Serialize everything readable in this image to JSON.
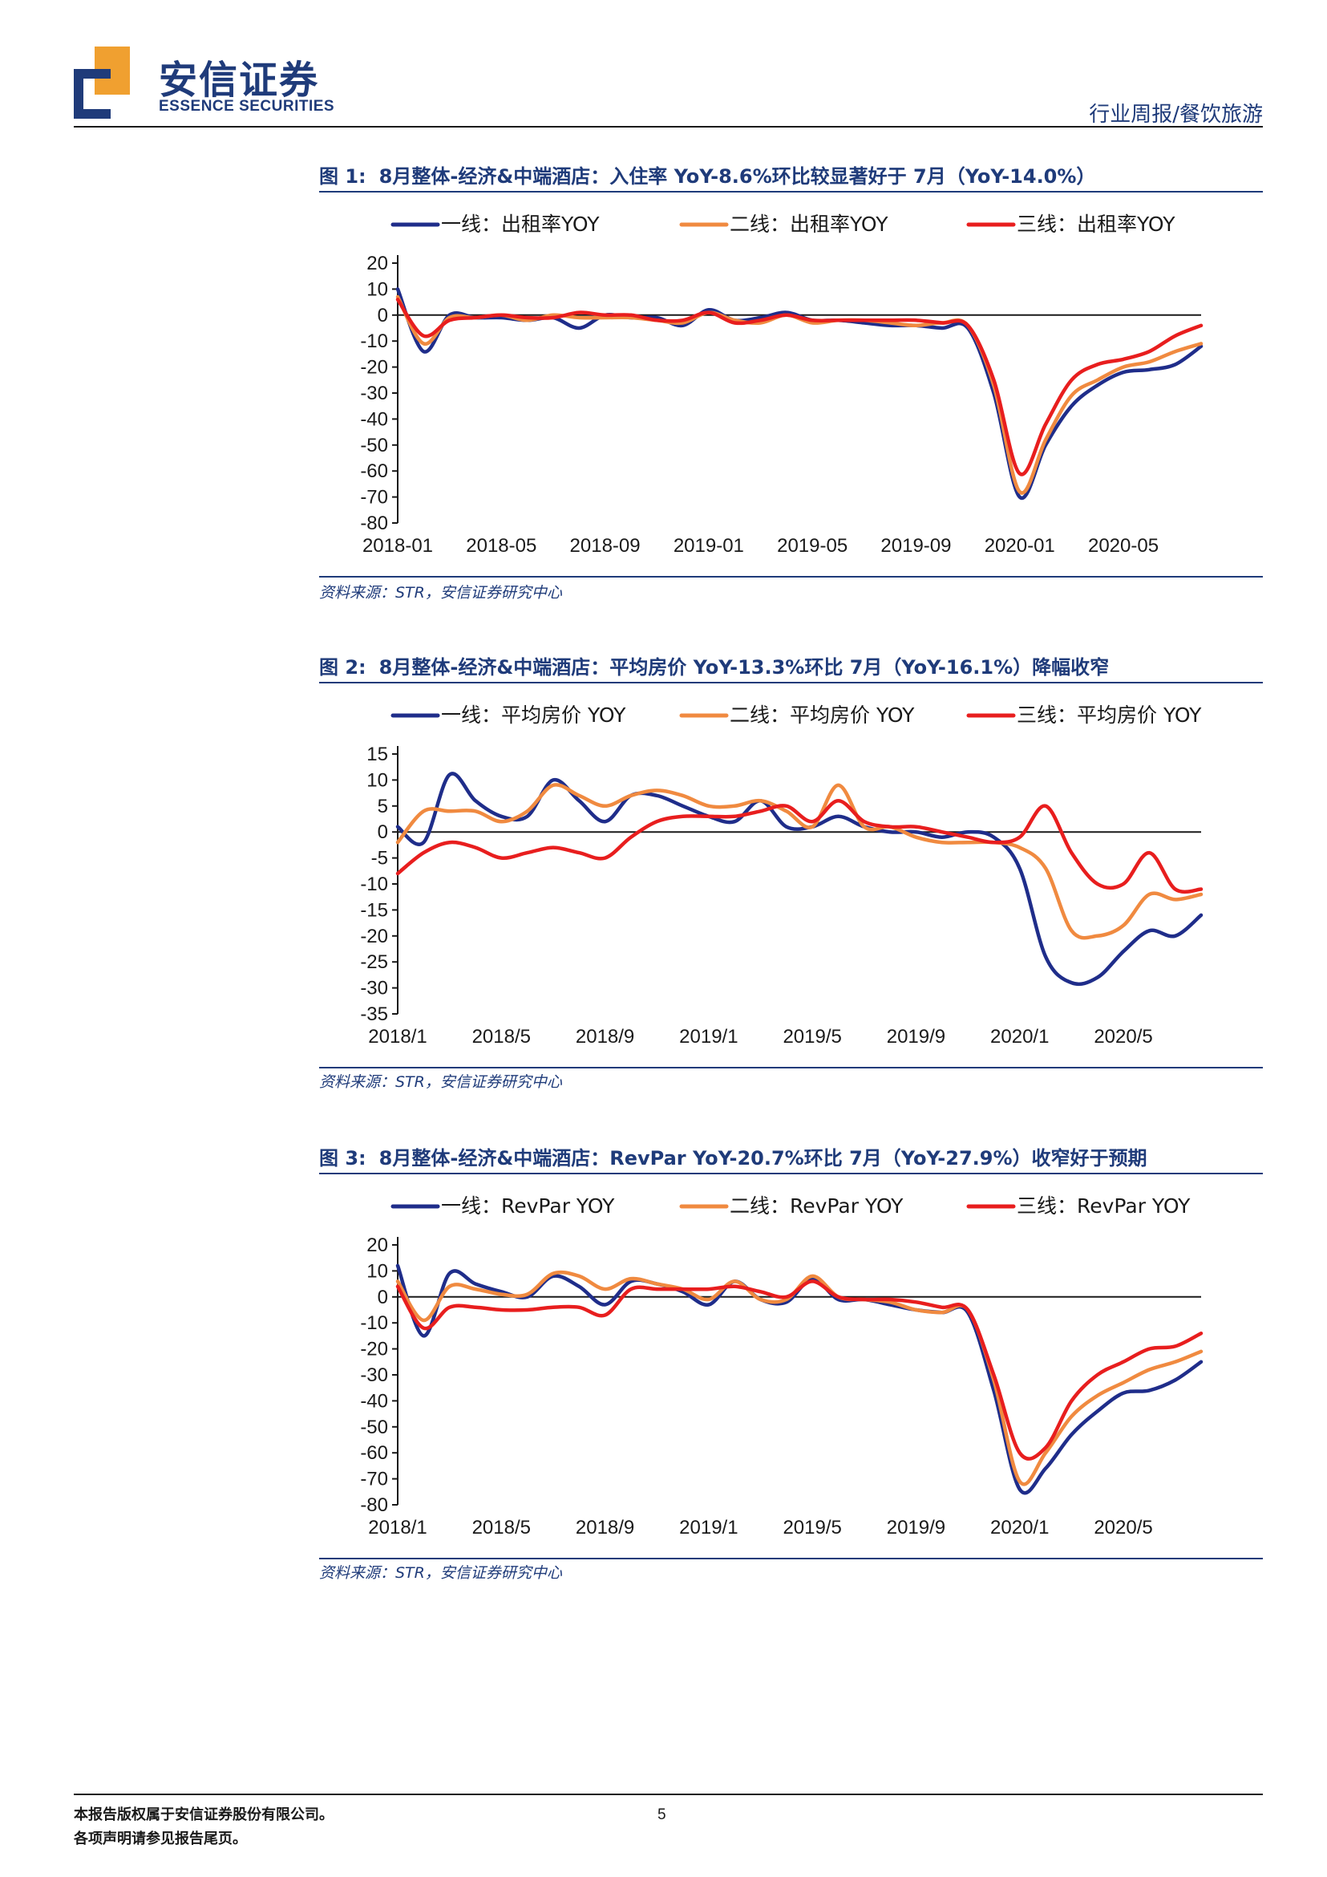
{
  "header": {
    "logo_cn": "安信证券",
    "logo_en": "ESSENCE SECURITIES",
    "category": "行业周报/餐饮旅游",
    "brand_blue": "#1f3b7a",
    "brand_orange": "#f0a030"
  },
  "figures": [
    {
      "num": "图 1:",
      "title": "8月整体-经济&中端酒店：入住率 YoY-8.6%环比较显著好于 7月（YoY-14.0%）",
      "source": "资料来源：STR，安信证券研究中心"
    },
    {
      "num": "图 2:",
      "title": "8月整体-经济&中端酒店：平均房价 YoY-13.3%环比 7月（YoY-16.1%）降幅收窄",
      "source": "资料来源：STR，安信证券研究中心"
    },
    {
      "num": "图 3:",
      "title": "8月整体-经济&中端酒店：RevPar YoY-20.7%环比 7月（YoY-27.9%）收窄好于预期",
      "source": "资料来源：STR，安信证券研究中心"
    }
  ],
  "chart_data": [
    {
      "type": "line",
      "title": "",
      "xlabel": "",
      "ylabel": "",
      "ylim": [
        -80,
        20
      ],
      "yticks": [
        20,
        10,
        0,
        -10,
        -20,
        -30,
        -40,
        -50,
        -60,
        -70,
        -80
      ],
      "x": [
        "2018-01",
        "2018-02",
        "2018-03",
        "2018-04",
        "2018-05",
        "2018-06",
        "2018-07",
        "2018-08",
        "2018-09",
        "2018-10",
        "2018-11",
        "2018-12",
        "2019-01",
        "2019-02",
        "2019-03",
        "2019-04",
        "2019-05",
        "2019-06",
        "2019-07",
        "2019-08",
        "2019-09",
        "2019-10",
        "2019-11",
        "2019-12",
        "2020-01",
        "2020-02",
        "2020-03",
        "2020-04",
        "2020-05",
        "2020-06",
        "2020-07",
        "2020-08"
      ],
      "xtick_labels": [
        "2018-01",
        "2018-05",
        "2018-09",
        "2019-01",
        "2019-05",
        "2019-09",
        "2020-01",
        "2020-05"
      ],
      "legend_position": "top",
      "series": [
        {
          "name": "一线：出租率YOY",
          "color": "#1f2d8a",
          "values": [
            10,
            -14,
            0,
            -1,
            -1,
            -2,
            -1,
            -5,
            0,
            -1,
            -1,
            -4,
            2,
            -2,
            -1,
            1,
            -2,
            -2,
            -3,
            -4,
            -4,
            -5,
            -5,
            -30,
            -70,
            -50,
            -35,
            -27,
            -22,
            -21,
            -19,
            -12
          ]
        },
        {
          "name": "二线：出租率YOY",
          "color": "#f08a40",
          "values": [
            7,
            -11,
            -1,
            -1,
            0,
            -2,
            0,
            -1,
            -1,
            -1,
            -2,
            -3,
            1,
            -2,
            -3,
            0,
            -3,
            -2,
            -2,
            -3,
            -4,
            -3,
            -4,
            -27,
            -68,
            -48,
            -31,
            -25,
            -20,
            -18,
            -14,
            -11
          ]
        },
        {
          "name": "三线：出租率YOY",
          "color": "#e81e1e",
          "values": [
            6,
            -8,
            -2,
            -1,
            0,
            -1,
            -1,
            1,
            0,
            0,
            -2,
            -2,
            1,
            -3,
            -2,
            0,
            -2,
            -2,
            -2,
            -2,
            -2,
            -3,
            -4,
            -25,
            -61,
            -42,
            -25,
            -19,
            -17,
            -14,
            -8,
            -4
          ]
        }
      ]
    },
    {
      "type": "line",
      "title": "",
      "xlabel": "",
      "ylabel": "",
      "ylim": [
        -35,
        15
      ],
      "yticks": [
        15,
        10,
        5,
        0,
        -5,
        -10,
        -15,
        -20,
        -25,
        -30,
        -35
      ],
      "x": [
        "2018/1",
        "2018/2",
        "2018/3",
        "2018/4",
        "2018/5",
        "2018/6",
        "2018/7",
        "2018/8",
        "2018/9",
        "2018/10",
        "2018/11",
        "2018/12",
        "2019/1",
        "2019/2",
        "2019/3",
        "2019/4",
        "2019/5",
        "2019/6",
        "2019/7",
        "2019/8",
        "2019/9",
        "2019/10",
        "2019/11",
        "2019/12",
        "2020/1",
        "2020/2",
        "2020/3",
        "2020/4",
        "2020/5",
        "2020/6",
        "2020/7",
        "2020/8"
      ],
      "xtick_labels": [
        "2018/1",
        "2018/5",
        "2018/9",
        "2019/1",
        "2019/5",
        "2019/9",
        "2020/1",
        "2020/5"
      ],
      "legend_position": "top",
      "series": [
        {
          "name": "一线：平均房价 YOY",
          "color": "#1f2d8a",
          "values": [
            1,
            -2,
            11,
            6,
            3,
            3,
            10,
            6,
            2,
            7,
            7,
            5,
            3,
            2,
            6,
            1,
            1,
            3,
            1,
            0,
            0,
            -1,
            0,
            -1,
            -7,
            -24,
            -29,
            -28,
            -23,
            -19,
            -20,
            -16
          ]
        },
        {
          "name": "二线：平均房价 YOY",
          "color": "#f08a40",
          "values": [
            -2,
            4,
            4,
            4,
            2,
            4,
            9,
            7,
            5,
            7,
            8,
            7,
            5,
            5,
            6,
            4,
            1,
            9,
            1,
            1,
            -1,
            -2,
            -2,
            -2,
            -3,
            -7,
            -19,
            -20,
            -18,
            -12,
            -13,
            -12
          ]
        },
        {
          "name": "三线：平均房价 YOY",
          "color": "#e81e1e",
          "values": [
            -8,
            -4,
            -2,
            -3,
            -5,
            -4,
            -3,
            -4,
            -5,
            -1,
            2,
            3,
            3,
            3,
            4,
            5,
            2,
            6,
            2,
            1,
            1,
            0,
            -1,
            -2,
            -1,
            5,
            -4,
            -10,
            -10,
            -4,
            -11,
            -11
          ]
        }
      ]
    },
    {
      "type": "line",
      "title": "",
      "xlabel": "",
      "ylabel": "",
      "ylim": [
        -80,
        20
      ],
      "yticks": [
        20,
        10,
        0,
        -10,
        -20,
        -30,
        -40,
        -50,
        -60,
        -70,
        -80
      ],
      "x": [
        "2018/1",
        "2018/2",
        "2018/3",
        "2018/4",
        "2018/5",
        "2018/6",
        "2018/7",
        "2018/8",
        "2018/9",
        "2018/10",
        "2018/11",
        "2018/12",
        "2019/1",
        "2019/2",
        "2019/3",
        "2019/4",
        "2019/5",
        "2019/6",
        "2019/7",
        "2019/8",
        "2019/9",
        "2019/10",
        "2019/11",
        "2019/12",
        "2020/1",
        "2020/2",
        "2020/3",
        "2020/4",
        "2020/5",
        "2020/6",
        "2020/7",
        "2020/8"
      ],
      "xtick_labels": [
        "2018/1",
        "2018/5",
        "2018/9",
        "2019/1",
        "2019/5",
        "2019/9",
        "2020/1",
        "2020/5"
      ],
      "legend_position": "top",
      "series": [
        {
          "name": "一线：RevPar YOY",
          "color": "#1f2d8a",
          "values": [
            12,
            -15,
            9,
            5,
            2,
            0,
            8,
            4,
            -3,
            6,
            5,
            2,
            -3,
            6,
            -1,
            -2,
            7,
            -1,
            -1,
            -3,
            -5,
            -6,
            -6,
            -36,
            -74,
            -66,
            -53,
            -44,
            -37,
            -36,
            -32,
            -25
          ]
        },
        {
          "name": "二线：RevPar YOY",
          "color": "#f08a40",
          "values": [
            6,
            -9,
            4,
            3,
            1,
            1,
            9,
            8,
            3,
            7,
            5,
            3,
            -1,
            6,
            -1,
            -1,
            8,
            0,
            -1,
            -2,
            -5,
            -6,
            -5,
            -32,
            -71,
            -60,
            -46,
            -38,
            -33,
            -28,
            -25,
            -21
          ]
        },
        {
          "name": "三线：RevPar YOY",
          "color": "#e81e1e",
          "values": [
            4,
            -12,
            -4,
            -4,
            -5,
            -5,
            -4,
            -4,
            -7,
            3,
            3,
            3,
            3,
            4,
            2,
            0,
            6,
            0,
            -1,
            -1,
            -2,
            -4,
            -5,
            -30,
            -60,
            -58,
            -40,
            -30,
            -25,
            -20,
            -19,
            -14
          ]
        }
      ]
    }
  ],
  "footer": {
    "line1": "本报告版权属于安信证券股份有限公司。",
    "line2": "各项声明请参见报告尾页。",
    "page": "5"
  }
}
